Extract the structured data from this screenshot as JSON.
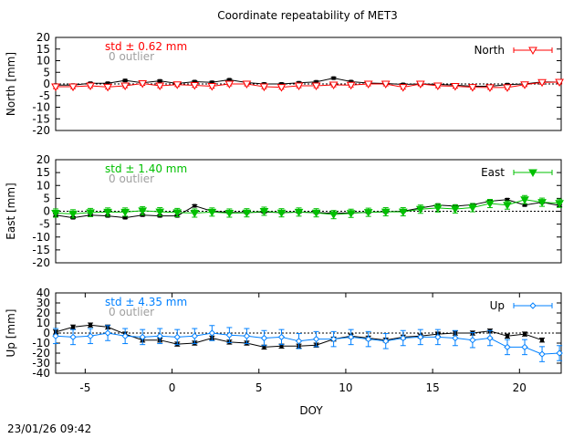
{
  "title": "Coordinate repeatability of MET3",
  "timestamp": "23/01/26 09:42",
  "chart_data": [
    {
      "type": "line",
      "panel": "north",
      "ylabel": "North [mm]",
      "ylim": [
        -20,
        20
      ],
      "yticks": [
        20,
        15,
        10,
        5,
        0,
        -5,
        -10,
        -15,
        -20
      ],
      "xlim": [
        -6.7,
        22.4
      ],
      "std_text": "std ± 0.62 mm",
      "outlier_text": "0 outlier",
      "legend": {
        "label": "North",
        "position": "top-right"
      },
      "color": "#ff0000",
      "marker": "triangle-down-open",
      "x": [
        -6.7,
        -5.7,
        -4.7,
        -3.7,
        -2.7,
        -1.7,
        -0.7,
        0.3,
        1.3,
        2.3,
        3.3,
        4.3,
        5.3,
        6.3,
        7.3,
        8.3,
        9.3,
        10.3,
        11.3,
        12.3,
        13.3,
        14.3,
        15.3,
        16.3,
        17.3,
        18.3,
        19.3,
        20.3,
        21.3,
        22.3
      ],
      "series": [
        {
          "values": [
            -1.2,
            -1.2,
            -0.8,
            -1.3,
            -0.8,
            0.2,
            -0.8,
            -0.3,
            -0.6,
            -1.0,
            0.0,
            0.0,
            -1.2,
            -1.4,
            -0.8,
            -0.8,
            -0.4,
            -0.5,
            0.0,
            0.0,
            -1.4,
            0.0,
            -0.8,
            -1.0,
            -1.4,
            -1.5,
            -1.5,
            -0.3,
            0.7,
            0.8
          ],
          "error": 0.8
        },
        {
          "values": [
            -0.5,
            -0.5,
            0.3,
            0.3,
            1.5,
            0.5,
            1.3,
            0.2,
            1.0,
            0.7,
            1.8,
            0.6,
            0.0,
            0.0,
            0.5,
            0.9,
            2.5,
            1.0,
            0.4,
            0.2,
            -0.2,
            0.0,
            -0.2,
            -0.5,
            -1.0,
            -1.0,
            -0.3,
            0.0,
            0.9,
            0.8
          ],
          "error": 0.4,
          "color": "#000000"
        }
      ]
    },
    {
      "type": "line",
      "panel": "east",
      "ylabel": "East [mm]",
      "ylim": [
        -20,
        20
      ],
      "yticks": [
        20,
        15,
        10,
        5,
        0,
        -5,
        -10,
        -15,
        -20
      ],
      "xlim": [
        -6.7,
        22.4
      ],
      "std_text": "std ± 1.40 mm",
      "outlier_text": "0 outlier",
      "legend": {
        "label": "East",
        "position": "top-right"
      },
      "color": "#00c000",
      "marker": "triangle-down-filled",
      "x": [
        -6.7,
        -5.7,
        -4.7,
        -3.7,
        -2.7,
        -1.7,
        -0.7,
        0.3,
        1.3,
        2.3,
        3.3,
        4.3,
        5.3,
        6.3,
        7.3,
        8.3,
        9.3,
        10.3,
        11.3,
        12.3,
        13.3,
        14.3,
        15.3,
        16.3,
        17.3,
        18.3,
        19.3,
        20.3,
        21.3,
        22.3
      ],
      "series": [
        {
          "values": [
            -0.7,
            -1.0,
            -0.5,
            -0.3,
            -0.3,
            0.2,
            -0.2,
            -0.5,
            -0.7,
            -0.3,
            -0.7,
            -0.6,
            0.0,
            -0.6,
            -0.3,
            -0.6,
            -1.3,
            -0.8,
            -0.4,
            -0.2,
            -0.2,
            0.8,
            1.3,
            0.9,
            1.4,
            3.0,
            2.4,
            4.5,
            3.5,
            3.1
          ],
          "error": 1.6
        },
        {
          "values": [
            -1.5,
            -2.5,
            -1.5,
            -1.8,
            -2.5,
            -1.5,
            -1.8,
            -1.8,
            2.1,
            0.0,
            -0.5,
            -0.5,
            -0.3,
            -0.5,
            -0.3,
            -0.5,
            -0.8,
            -0.6,
            -0.4,
            -0.2,
            0.0,
            1.3,
            2.4,
            2.0,
            2.5,
            3.9,
            4.5,
            2.4,
            3.5,
            2.2
          ],
          "error": 0.4,
          "color": "#000000"
        }
      ]
    },
    {
      "type": "line",
      "panel": "up",
      "ylabel": "Up [mm]",
      "xlabel": "DOY",
      "ylim": [
        -40,
        40
      ],
      "yticks": [
        40,
        30,
        20,
        10,
        0,
        -10,
        -20,
        -30,
        -40
      ],
      "xlim": [
        -6.7,
        22.4
      ],
      "xticks": [
        -5,
        0,
        5,
        10,
        15,
        20
      ],
      "std_text": "std ± 4.35 mm",
      "outlier_text": "0 outlier",
      "legend": {
        "label": "Up",
        "position": "top-right"
      },
      "color": "#0080ff",
      "marker": "diamond-open",
      "x": [
        -6.7,
        -5.7,
        -4.7,
        -3.7,
        -2.7,
        -1.7,
        -0.7,
        0.3,
        1.3,
        2.3,
        3.3,
        4.3,
        5.3,
        6.3,
        7.3,
        8.3,
        9.3,
        10.3,
        11.3,
        12.3,
        13.3,
        14.3,
        15.3,
        16.3,
        17.3,
        18.3,
        19.3,
        20.3,
        21.3,
        22.3
      ],
      "series": [
        {
          "values": [
            -3,
            -4,
            -3,
            0,
            -3,
            -4,
            -3,
            -4,
            -3,
            0,
            -2,
            -3,
            -5,
            -4,
            -8,
            -6,
            -6,
            -4,
            -6,
            -8,
            -5,
            -4,
            -4,
            -5,
            -7,
            -5,
            -14,
            -14,
            -21,
            -20
          ],
          "error": 7.5
        },
        {
          "values": [
            1,
            6,
            8,
            6,
            -1,
            -7,
            -7,
            -11,
            -10,
            -5,
            -9,
            -10,
            -14,
            -13,
            -13,
            -12,
            -6,
            -3,
            -5,
            -7,
            -4,
            -3,
            -1,
            0,
            0,
            2,
            -3,
            -1,
            -7,
            null
          ],
          "error": 2,
          "color": "#000000"
        }
      ]
    }
  ]
}
